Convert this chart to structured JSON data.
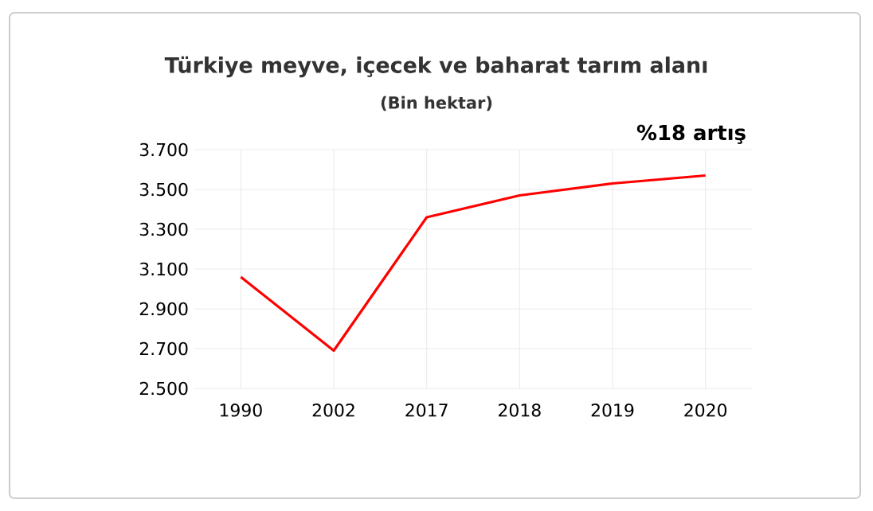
{
  "chart_data": {
    "type": "line",
    "title": "Türkiye meyve, içecek ve baharat tarım alanı",
    "subtitle": "(Bin hektar)",
    "categories": [
      "1990",
      "2002",
      "2017",
      "2018",
      "2019",
      "2020"
    ],
    "series": [
      {
        "color": "#ff0000",
        "values": [
          3060,
          2690,
          3360,
          3470,
          3530,
          3570
        ]
      }
    ],
    "ylim": [
      2500,
      3700
    ],
    "yticks": [
      {
        "value": 2500,
        "label": "2.500"
      },
      {
        "value": 2700,
        "label": "2.700"
      },
      {
        "value": 2900,
        "label": "2.900"
      },
      {
        "value": 3100,
        "label": "3.100"
      },
      {
        "value": 3300,
        "label": "3.300"
      },
      {
        "value": 3500,
        "label": "3.500"
      },
      {
        "value": 3700,
        "label": "3.700"
      }
    ],
    "grid": true,
    "marker": "none",
    "line_style": "solid",
    "annotations": [
      "%18 artış"
    ]
  }
}
